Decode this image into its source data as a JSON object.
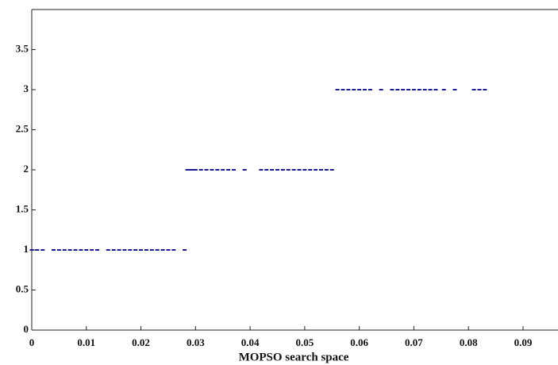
{
  "chart_data": {
    "type": "scatter",
    "x_label": "MOPSO search space",
    "xlim": [
      0,
      0.0964
    ],
    "ylim": [
      0,
      4
    ],
    "xticks": [
      0,
      0.01,
      0.02,
      0.03,
      0.04,
      0.05,
      0.06,
      0.07,
      0.08,
      0.09
    ],
    "yticks": [
      0,
      0.5,
      1,
      1.5,
      2,
      2.5,
      3,
      3.5
    ],
    "series": [
      {
        "color": "#1c1c8c",
        "x": [
          0.0,
          0.001,
          0.002,
          0.004,
          0.005,
          0.006,
          0.007,
          0.008,
          0.009,
          0.01,
          0.011,
          0.012,
          0.014,
          0.015,
          0.016,
          0.017,
          0.018,
          0.019,
          0.02,
          0.021,
          0.022,
          0.023,
          0.024,
          0.025,
          0.026,
          0.028
        ],
        "values": [
          1,
          1,
          1,
          1,
          1,
          1,
          1,
          1,
          1,
          1,
          1,
          1,
          1,
          1,
          1,
          1,
          1,
          1,
          1,
          1,
          1,
          1,
          1,
          1,
          1,
          1
        ]
      },
      {
        "color": "#1c1c8c",
        "x": [
          0.0285,
          0.029,
          0.0295,
          0.03,
          0.031,
          0.032,
          0.033,
          0.034,
          0.035,
          0.036,
          0.037,
          0.039,
          0.042,
          0.043,
          0.044,
          0.045,
          0.046,
          0.047,
          0.048,
          0.049,
          0.05,
          0.051,
          0.052,
          0.053,
          0.054,
          0.055
        ],
        "values": [
          2,
          2,
          2,
          2,
          2,
          2,
          2,
          2,
          2,
          2,
          2,
          2,
          2,
          2,
          2,
          2,
          2,
          2,
          2,
          2,
          2,
          2,
          2,
          2,
          2,
          2
        ]
      },
      {
        "color": "#1c1c8c",
        "x": [
          0.056,
          0.057,
          0.058,
          0.059,
          0.06,
          0.061,
          0.062,
          0.064,
          0.066,
          0.067,
          0.068,
          0.069,
          0.07,
          0.071,
          0.072,
          0.073,
          0.074,
          0.0755,
          0.0775,
          0.081,
          0.082,
          0.083
        ],
        "values": [
          3,
          3,
          3,
          3,
          3,
          3,
          3,
          3,
          3,
          3,
          3,
          3,
          3,
          3,
          3,
          3,
          3,
          3,
          3,
          3,
          3,
          3
        ]
      }
    ]
  }
}
